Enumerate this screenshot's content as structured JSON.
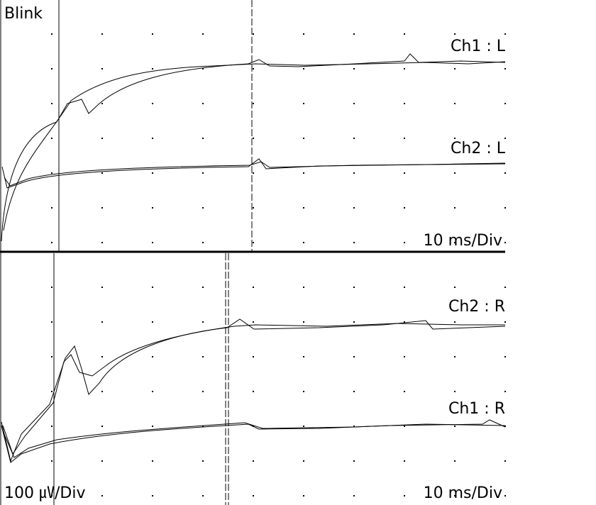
{
  "title": "Blink",
  "top_panel": {
    "trace_labels": [
      "Ch1 : L",
      "Ch2 : L"
    ],
    "time_scale": "10 ms/Div"
  },
  "bottom_panel": {
    "trace_labels": [
      "Ch2 : R",
      "Ch1 : R"
    ],
    "amplitude_scale": "100 ㎶/Div",
    "time_scale": "10 ms/Div"
  }
}
